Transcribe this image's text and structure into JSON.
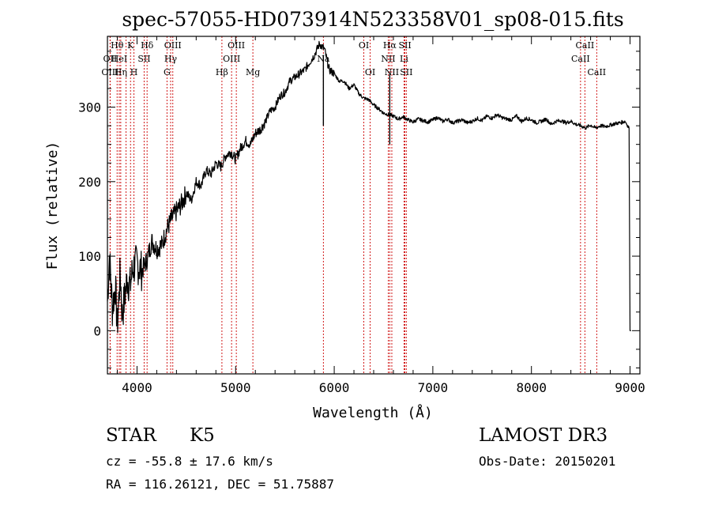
{
  "chart_data": {
    "type": "line",
    "title": "spec-57055-HD073914N523358V01_sp08-015.fits",
    "xlabel": "Wavelength (Å)",
    "ylabel": "Flux (relative)",
    "xlim": [
      3700,
      9100
    ],
    "ylim": [
      -58,
      395
    ],
    "xticks": [
      4000,
      5000,
      6000,
      7000,
      8000,
      9000
    ],
    "yticks": [
      0,
      100,
      200,
      300
    ],
    "series": [
      {
        "name": "flux",
        "color": "#000000",
        "x": [
          3700,
          3720,
          3750,
          3780,
          3800,
          3830,
          3850,
          3880,
          3900,
          3930,
          3960,
          4000,
          4050,
          4100,
          4150,
          4200,
          4250,
          4300,
          4350,
          4400,
          4450,
          4500,
          4550,
          4600,
          4650,
          4700,
          4750,
          4800,
          4850,
          4900,
          4950,
          5000,
          5050,
          5100,
          5150,
          5200,
          5250,
          5300,
          5350,
          5400,
          5450,
          5500,
          5550,
          5600,
          5650,
          5700,
          5750,
          5800,
          5850,
          5900,
          5950,
          6000,
          6050,
          6100,
          6150,
          6200,
          6250,
          6300,
          6350,
          6400,
          6450,
          6500,
          6550,
          6600,
          6650,
          6700,
          6750,
          6800,
          6850,
          6900,
          6950,
          7000,
          7050,
          7100,
          7150,
          7200,
          7250,
          7300,
          7350,
          7400,
          7450,
          7500,
          7550,
          7600,
          7650,
          7700,
          7750,
          7800,
          7850,
          7900,
          7950,
          8000,
          8050,
          8100,
          8150,
          8200,
          8250,
          8300,
          8350,
          8400,
          8450,
          8500,
          8550,
          8600,
          8650,
          8700,
          8750,
          8800,
          8850,
          8900,
          8950,
          8990,
          9000,
          9010
        ],
        "y": [
          40,
          100,
          30,
          60,
          5,
          80,
          20,
          50,
          70,
          60,
          85,
          90,
          80,
          95,
          120,
          110,
          115,
          135,
          150,
          160,
          170,
          185,
          175,
          200,
          195,
          215,
          210,
          225,
          220,
          235,
          240,
          230,
          245,
          255,
          250,
          265,
          270,
          280,
          295,
          300,
          315,
          320,
          335,
          340,
          345,
          350,
          360,
          370,
          385,
          378,
          350,
          345,
          335,
          335,
          325,
          330,
          318,
          312,
          310,
          303,
          298,
          292,
          290,
          288,
          284,
          287,
          283,
          280,
          284,
          282,
          280,
          283,
          286,
          281,
          284,
          279,
          281,
          283,
          279,
          281,
          285,
          282,
          288,
          285,
          290,
          286,
          284,
          283,
          288,
          281,
          285,
          283,
          279,
          281,
          284,
          277,
          281,
          282,
          279,
          281,
          277,
          275,
          272,
          276,
          272,
          275,
          274,
          276,
          278,
          279,
          281,
          272,
          0,
          0
        ],
        "features": [
          {
            "x": 5890,
            "y": 275
          },
          {
            "x": 6563,
            "y": 250
          }
        ]
      }
    ],
    "lines": [
      {
        "x": 3798,
        "label": "Hθ",
        "row": 1
      },
      {
        "x": 3727,
        "label": "OII",
        "row": 2
      },
      {
        "x": 3820,
        "label": "HeI",
        "row": 2
      },
      {
        "x": 3727,
        "label": "OIII",
        "row": 3
      },
      {
        "x": 3835,
        "label": "Hη",
        "row": 3
      },
      {
        "x": 3889,
        "label": "",
        "row": 0
      },
      {
        "x": 3934,
        "label": "K",
        "row": 1
      },
      {
        "x": 3969,
        "label": "H",
        "row": 3
      },
      {
        "x": 4072,
        "label": "SII",
        "row": 2
      },
      {
        "x": 4102,
        "label": "Hδ",
        "row": 1
      },
      {
        "x": 4304,
        "label": "G",
        "row": 3
      },
      {
        "x": 4341,
        "label": "Hγ",
        "row": 2
      },
      {
        "x": 4363,
        "label": "OIII",
        "row": 1
      },
      {
        "x": 4861,
        "label": "Hβ",
        "row": 3
      },
      {
        "x": 4959,
        "label": "OIII",
        "row": 2
      },
      {
        "x": 5007,
        "label": "OIII",
        "row": 1
      },
      {
        "x": 5175,
        "label": "Mg",
        "row": 3
      },
      {
        "x": 5890,
        "label": "Na",
        "row": 2
      },
      {
        "x": 6300,
        "label": "OI",
        "row": 1
      },
      {
        "x": 6364,
        "label": "OI",
        "row": 3
      },
      {
        "x": 6548,
        "label": "NII",
        "row": 2
      },
      {
        "x": 6563,
        "label": "Hα",
        "row": 1
      },
      {
        "x": 6584,
        "label": "NII",
        "row": 3
      },
      {
        "x": 6708,
        "label": "Li",
        "row": 2
      },
      {
        "x": 6717,
        "label": "SII",
        "row": 1
      },
      {
        "x": 6731,
        "label": "SII",
        "row": 3
      },
      {
        "x": 8498,
        "label": "CaII",
        "row": 2
      },
      {
        "x": 8542,
        "label": "CaII",
        "row": 1
      },
      {
        "x": 8662,
        "label": "CaII",
        "row": 3
      }
    ]
  },
  "info": {
    "object_class": "STAR",
    "subclass": "K5",
    "survey": "LAMOST DR3",
    "redshift": "cz = -55.8 ± 17.6 km/s",
    "obs_date": "Obs-Date: 20150201",
    "coords": "RA = 116.26121, DEC =  51.75887"
  }
}
